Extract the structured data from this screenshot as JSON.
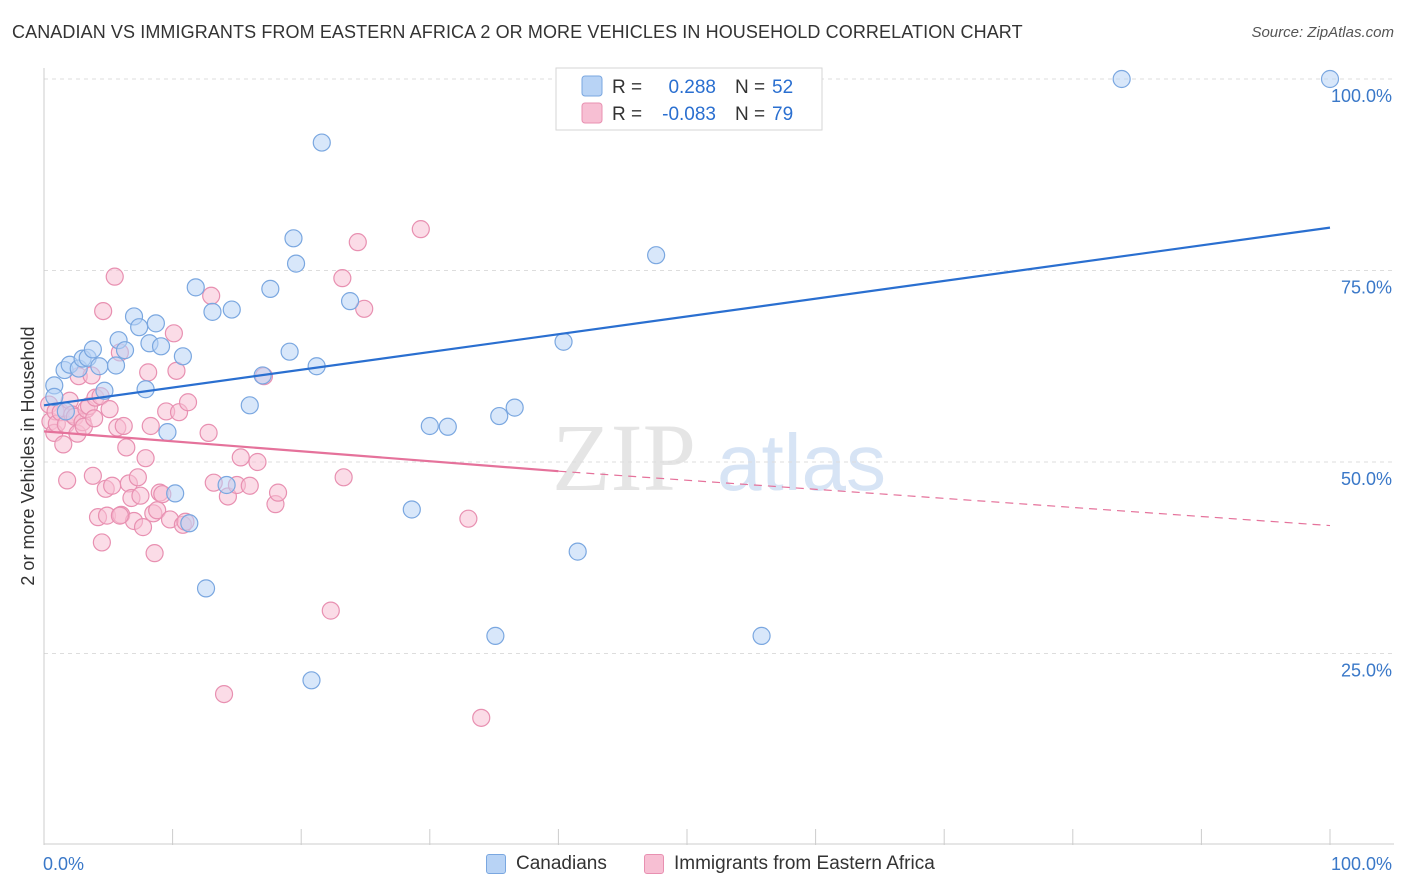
{
  "title": "CANADIAN VS IMMIGRANTS FROM EASTERN AFRICA 2 OR MORE VEHICLES IN HOUSEHOLD CORRELATION CHART",
  "source": "Source: ZipAtlas.com",
  "watermark": {
    "zip": "ZIP",
    "atlas": "atlas"
  },
  "legend_top": {
    "rows": [
      {
        "r_label": "R =",
        "r_value": "0.288",
        "n_label": "N =",
        "n_value": "52"
      },
      {
        "r_label": "R =",
        "r_value": "-0.083",
        "n_label": "N =",
        "n_value": "79"
      }
    ]
  },
  "legend_bottom": {
    "canadians": "Canadians",
    "immigrants": "Immigrants from Eastern Africa"
  },
  "colors": {
    "blue_fill": "#b8d3f5",
    "blue_stroke": "#7aa7e0",
    "blue_line": "#2a6fd0",
    "pink_fill": "#f7bfd3",
    "pink_stroke": "#e890b1",
    "pink_line": "#e5729b",
    "axis_label": "#3a78c8",
    "grid": "#dddddd",
    "value_text": "#2a6fd0"
  },
  "chart_data": {
    "type": "scatter",
    "title": "CANADIAN VS IMMIGRANTS FROM EASTERN AFRICA 2 OR MORE VEHICLES IN HOUSEHOLD CORRELATION CHART",
    "xlabel": "",
    "ylabel": "2 or more Vehicles in Household",
    "xlim": [
      0,
      100
    ],
    "ylim": [
      4,
      102
    ],
    "x_tick_labels": [
      "0.0%",
      "100.0%"
    ],
    "y_ticks": [
      25,
      50,
      75,
      100
    ],
    "y_tick_labels": [
      "25.0%",
      "50.0%",
      "75.0%",
      "100.0%"
    ],
    "grid": "horizontal dashed",
    "legend_position": "top-center",
    "series": [
      {
        "name": "Canadians",
        "r": 0.288,
        "n": 52,
        "trend": {
          "x": [
            0,
            100
          ],
          "y": [
            57.4,
            80.6
          ],
          "style": "solid"
        },
        "points": [
          [
            0.8,
            60.0
          ],
          [
            0.8,
            58.5
          ],
          [
            1.6,
            62.0
          ],
          [
            1.7,
            56.6
          ],
          [
            2.0,
            62.7
          ],
          [
            2.7,
            62.2
          ],
          [
            3.0,
            63.5
          ],
          [
            3.4,
            63.6
          ],
          [
            3.8,
            64.7
          ],
          [
            4.3,
            62.5
          ],
          [
            4.7,
            59.3
          ],
          [
            5.6,
            62.6
          ],
          [
            5.8,
            65.9
          ],
          [
            6.3,
            64.6
          ],
          [
            7.0,
            69.0
          ],
          [
            7.4,
            67.6
          ],
          [
            7.9,
            59.5
          ],
          [
            8.2,
            65.5
          ],
          [
            8.7,
            68.1
          ],
          [
            9.1,
            65.1
          ],
          [
            9.6,
            53.9
          ],
          [
            10.2,
            45.9
          ],
          [
            10.8,
            63.8
          ],
          [
            11.3,
            42.0
          ],
          [
            11.8,
            72.8
          ],
          [
            12.6,
            33.5
          ],
          [
            13.1,
            69.6
          ],
          [
            14.2,
            47.0
          ],
          [
            14.6,
            69.9
          ],
          [
            16.0,
            57.4
          ],
          [
            17.0,
            61.3
          ],
          [
            17.6,
            72.6
          ],
          [
            19.1,
            64.4
          ],
          [
            19.4,
            79.2
          ],
          [
            19.6,
            75.9
          ],
          [
            20.8,
            21.5
          ],
          [
            21.2,
            62.5
          ],
          [
            21.6,
            91.7
          ],
          [
            23.8,
            71.0
          ],
          [
            28.6,
            43.8
          ],
          [
            30.0,
            54.7
          ],
          [
            31.4,
            54.6
          ],
          [
            35.1,
            27.3
          ],
          [
            35.4,
            56.0
          ],
          [
            36.6,
            57.1
          ],
          [
            40.4,
            65.7
          ],
          [
            41.5,
            38.3
          ],
          [
            47.6,
            77.0
          ],
          [
            55.8,
            27.3
          ],
          [
            56.9,
            99.8
          ],
          [
            83.8,
            100.0
          ],
          [
            100.0,
            100.0
          ]
        ]
      },
      {
        "name": "Immigrants from Eastern Africa",
        "r": -0.083,
        "n": 79,
        "trend": {
          "x": [
            0,
            40
          ],
          "y": [
            54.0,
            48.8
          ],
          "style": "solid",
          "extension": {
            "x": [
              40,
              100
            ],
            "y": [
              48.8,
              41.7
            ],
            "style": "dashed"
          }
        },
        "points": [
          [
            0.4,
            57.5
          ],
          [
            0.5,
            55.3
          ],
          [
            0.8,
            53.8
          ],
          [
            0.9,
            56.6
          ],
          [
            1.0,
            55.0
          ],
          [
            1.3,
            56.5
          ],
          [
            1.5,
            52.3
          ],
          [
            1.7,
            54.9
          ],
          [
            1.8,
            47.6
          ],
          [
            2.0,
            58.0
          ],
          [
            2.2,
            56.2
          ],
          [
            2.4,
            55.9
          ],
          [
            2.6,
            53.7
          ],
          [
            2.7,
            61.2
          ],
          [
            3.0,
            55.2
          ],
          [
            3.1,
            54.6
          ],
          [
            3.3,
            56.9
          ],
          [
            3.5,
            57.3
          ],
          [
            3.7,
            61.3
          ],
          [
            3.8,
            48.2
          ],
          [
            3.9,
            55.7
          ],
          [
            4.0,
            58.4
          ],
          [
            4.2,
            42.8
          ],
          [
            4.4,
            58.6
          ],
          [
            4.5,
            39.5
          ],
          [
            4.6,
            69.7
          ],
          [
            4.8,
            46.5
          ],
          [
            4.9,
            43.0
          ],
          [
            5.1,
            56.9
          ],
          [
            5.3,
            46.9
          ],
          [
            5.5,
            74.2
          ],
          [
            5.7,
            54.5
          ],
          [
            5.9,
            64.3
          ],
          [
            6.0,
            43.1
          ],
          [
            6.2,
            54.7
          ],
          [
            6.4,
            51.9
          ],
          [
            6.6,
            47.2
          ],
          [
            6.8,
            45.3
          ],
          [
            7.0,
            42.3
          ],
          [
            7.3,
            48.0
          ],
          [
            7.5,
            45.6
          ],
          [
            7.7,
            41.5
          ],
          [
            7.9,
            50.5
          ],
          [
            8.1,
            61.7
          ],
          [
            8.3,
            54.7
          ],
          [
            8.5,
            43.3
          ],
          [
            8.6,
            38.1
          ],
          [
            8.8,
            43.7
          ],
          [
            9.0,
            46.0
          ],
          [
            9.2,
            45.8
          ],
          [
            9.5,
            56.6
          ],
          [
            9.8,
            42.5
          ],
          [
            10.1,
            66.8
          ],
          [
            10.3,
            61.9
          ],
          [
            10.5,
            56.5
          ],
          [
            10.8,
            41.8
          ],
          [
            11.2,
            57.8
          ],
          [
            12.8,
            53.8
          ],
          [
            13.0,
            71.7
          ],
          [
            13.2,
            47.3
          ],
          [
            14.0,
            19.7
          ],
          [
            14.3,
            45.5
          ],
          [
            15.0,
            47.0
          ],
          [
            15.3,
            50.6
          ],
          [
            16.6,
            50.0
          ],
          [
            17.1,
            61.2
          ],
          [
            18.0,
            44.5
          ],
          [
            18.2,
            46.0
          ],
          [
            22.3,
            30.6
          ],
          [
            23.2,
            74.0
          ],
          [
            23.3,
            48.0
          ],
          [
            24.4,
            78.7
          ],
          [
            24.9,
            70.0
          ],
          [
            29.3,
            80.4
          ],
          [
            33.0,
            42.6
          ],
          [
            34.0,
            16.6
          ],
          [
            11.0,
            42.2
          ],
          [
            5.9,
            43.0
          ],
          [
            16.0,
            46.9
          ]
        ]
      }
    ]
  }
}
